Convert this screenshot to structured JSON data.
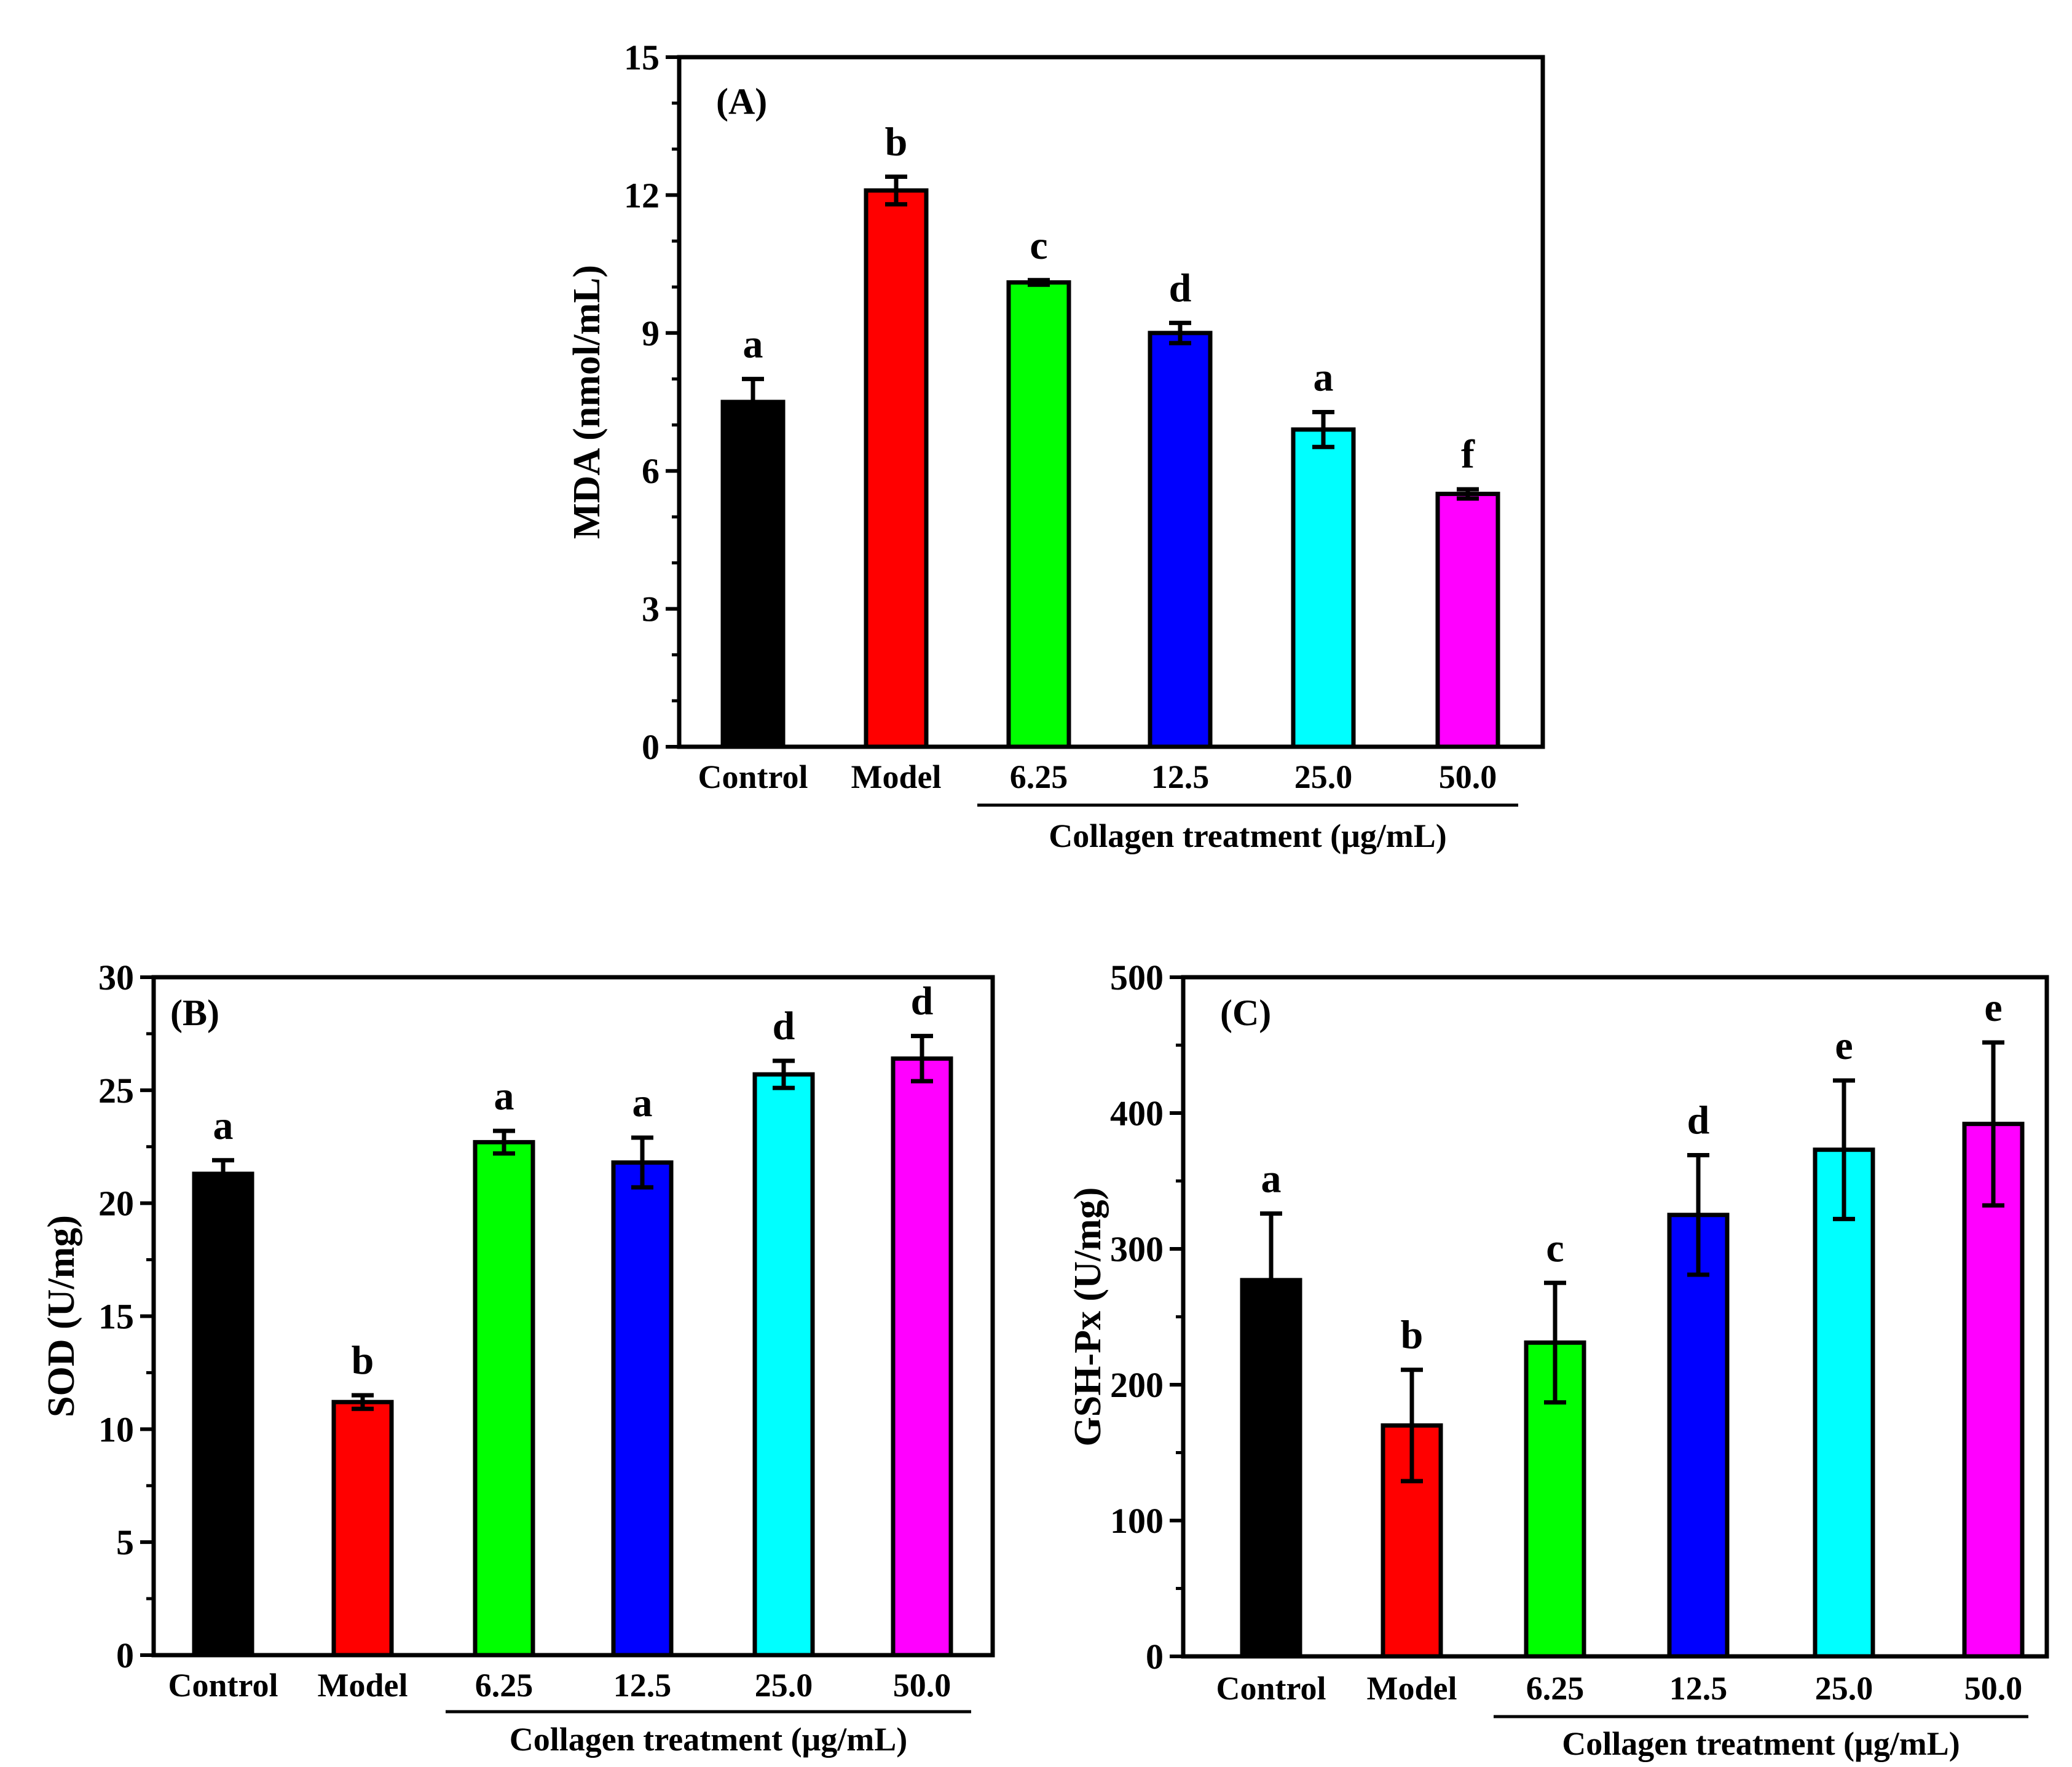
{
  "figure": {
    "group_label": "Collagen treatment (μg/mL)"
  },
  "chart_data": [
    {
      "type": "bar",
      "panel": "(A)",
      "title": "",
      "xlabel": "",
      "ylabel": "MDA (nmol/mL)",
      "ylim": [
        0,
        15
      ],
      "yticks": [
        0,
        3,
        6,
        9,
        12,
        15
      ],
      "categories": [
        "Control",
        "Model",
        "6.25",
        "12.5",
        "25.0",
        "50.0"
      ],
      "values": [
        7.5,
        12.1,
        10.1,
        9.0,
        6.9,
        5.5
      ],
      "errors": [
        0.5,
        0.3,
        0.05,
        0.22,
        0.38,
        0.1
      ],
      "letters": [
        "a",
        "b",
        "c",
        "d",
        "a",
        "f"
      ],
      "colors": [
        "#000000",
        "#ff0000",
        "#00ff00",
        "#0000ff",
        "#00ffff",
        "#ff00ff"
      ],
      "group_label": "Collagen treatment (μg/mL)",
      "group_range": [
        "6.25",
        "50.0"
      ],
      "grid": false
    },
    {
      "type": "bar",
      "panel": "(B)",
      "title": "",
      "xlabel": "",
      "ylabel": "SOD (U/mg)",
      "ylim": [
        0,
        30
      ],
      "yticks": [
        0,
        5,
        10,
        15,
        20,
        25,
        30
      ],
      "categories": [
        "Control",
        "Model",
        "6.25",
        "12.5",
        "25.0",
        "50.0"
      ],
      "values": [
        21.3,
        11.2,
        22.7,
        21.8,
        25.7,
        26.4
      ],
      "errors": [
        0.6,
        0.3,
        0.5,
        1.1,
        0.6,
        1.0
      ],
      "letters": [
        "a",
        "b",
        "a",
        "a",
        "d",
        "d"
      ],
      "colors": [
        "#000000",
        "#ff0000",
        "#00ff00",
        "#0000ff",
        "#00ffff",
        "#ff00ff"
      ],
      "group_label": "Collagen treatment (μg/mL)",
      "group_range": [
        "6.25",
        "50.0"
      ],
      "grid": false
    },
    {
      "type": "bar",
      "panel": "(C)",
      "title": "",
      "xlabel": "",
      "ylabel": "GSH-Px (U/mg)",
      "ylim": [
        0,
        500
      ],
      "yticks": [
        0,
        100,
        200,
        300,
        400,
        500
      ],
      "categories": [
        "Control",
        "Model",
        "6.25",
        "12.5",
        "25.0",
        "50.0"
      ],
      "values": [
        277,
        170,
        231,
        325,
        373,
        392
      ],
      "errors": [
        49,
        41,
        44,
        44,
        51,
        60
      ],
      "letters": [
        "a",
        "b",
        "c",
        "d",
        "e",
        "e"
      ],
      "colors": [
        "#000000",
        "#ff0000",
        "#00ff00",
        "#0000ff",
        "#00ffff",
        "#ff00ff"
      ],
      "group_label": "Collagen treatment (μg/mL)",
      "group_range": [
        "6.25",
        "50.0"
      ],
      "grid": false
    }
  ]
}
